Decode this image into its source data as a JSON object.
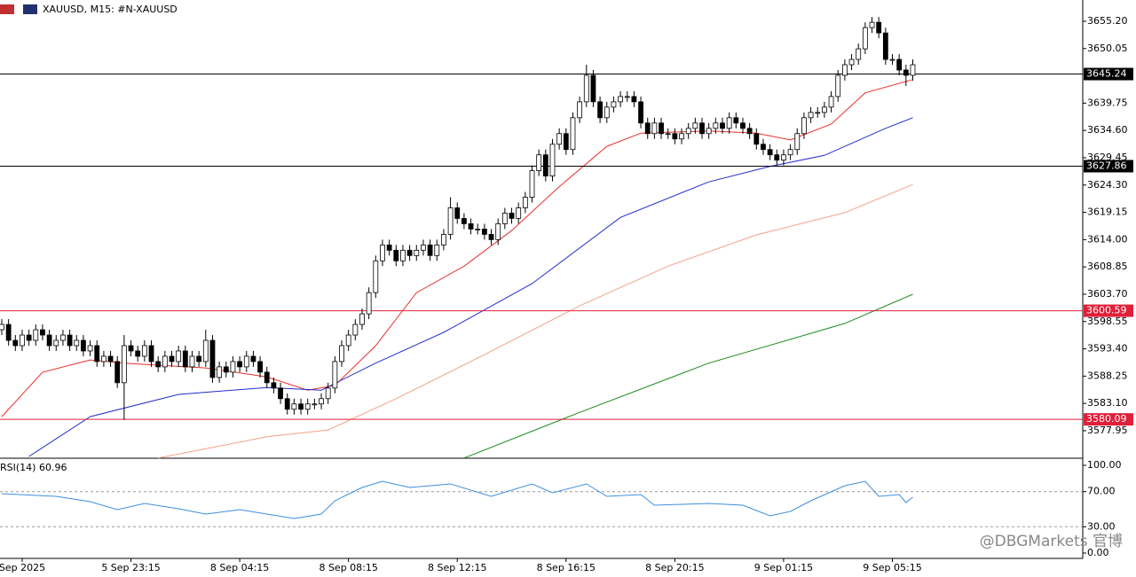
{
  "chart_data": {
    "type": "candlestick",
    "title": "XAUUSD, M15:  #N-XAUUSD",
    "watermark": "@DBGMarkets 官博",
    "bull_color": "#ffffff",
    "bear_color": "#000000",
    "open": [
      3597,
      3598,
      3595,
      3594,
      3596,
      3595,
      3597,
      3596,
      3594,
      3595,
      3596,
      3594,
      3595,
      3593,
      3594,
      3591,
      3592,
      3591,
      3587,
      3594,
      3593,
      3592,
      3594,
      3591,
      3590,
      3592,
      3591,
      3593,
      3590,
      3592,
      3591,
      3595,
      3588,
      3590,
      3589,
      3591,
      3590,
      3592,
      3591,
      3589,
      3587,
      3586,
      3584,
      3582,
      3583,
      3582,
      3583,
      3583,
      3584,
      3586,
      3591,
      3594,
      3596,
      3598,
      3600,
      3604,
      3610,
      3613,
      3612,
      3610,
      3612,
      3611,
      3612,
      3613,
      3611,
      3613,
      3615,
      3620,
      3618,
      3617,
      3616,
      3616,
      3615,
      3614,
      3617,
      3619,
      3618,
      3620,
      3622,
      3627,
      3630,
      3626,
      3632,
      3634,
      3631,
      3637,
      3640,
      3645,
      3640,
      3637,
      3639,
      3640,
      3641,
      3641,
      3640,
      3636,
      3634,
      3636,
      3634,
      3634,
      3633,
      3634,
      3635,
      3636,
      3634,
      3635,
      3636,
      3635,
      3637,
      3636,
      3635,
      3634,
      3632,
      3631,
      3630,
      3629,
      3630,
      3631,
      3634,
      3637,
      3638,
      3638,
      3639,
      3641,
      3645,
      3647,
      3648,
      3650,
      3654,
      3655,
      3653,
      3648,
      3648,
      3646,
      3645
    ],
    "high": [
      3599,
      3599,
      3596,
      3597,
      3597,
      3598,
      3598,
      3597,
      3596,
      3597,
      3597,
      3596,
      3596,
      3595,
      3595,
      3593,
      3593,
      3592,
      3596,
      3595,
      3594,
      3595,
      3595,
      3592,
      3593,
      3593,
      3594,
      3594,
      3593,
      3593,
      3597,
      3596,
      3591,
      3591,
      3592,
      3592,
      3593,
      3593,
      3592,
      3590,
      3588,
      3587,
      3585,
      3584,
      3584,
      3584,
      3584,
      3585,
      3587,
      3592,
      3595,
      3597,
      3599,
      3601,
      3605,
      3611,
      3614,
      3614,
      3613,
      3613,
      3613,
      3613,
      3614,
      3614,
      3614,
      3616,
      3622,
      3621,
      3619,
      3618,
      3617,
      3617,
      3616,
      3618,
      3620,
      3620,
      3621,
      3623,
      3628,
      3631,
      3631,
      3633,
      3635,
      3635,
      3638,
      3641,
      3647,
      3646,
      3641,
      3640,
      3641,
      3642,
      3642,
      3642,
      3641,
      3637,
      3637,
      3637,
      3635,
      3635,
      3635,
      3636,
      3637,
      3637,
      3636,
      3637,
      3637,
      3638,
      3638,
      3637,
      3636,
      3635,
      3633,
      3632,
      3631,
      3631,
      3632,
      3635,
      3638,
      3639,
      3639,
      3640,
      3642,
      3646,
      3648,
      3649,
      3651,
      3655,
      3656,
      3656,
      3654,
      3649,
      3649,
      3647,
      3648
    ],
    "low": [
      3596,
      3594,
      3593,
      3593,
      3594,
      3594,
      3595,
      3593,
      3593,
      3594,
      3593,
      3593,
      3592,
      3592,
      3590,
      3590,
      3590,
      3586,
      3580,
      3592,
      3591,
      3591,
      3590,
      3589,
      3589,
      3590,
      3590,
      3589,
      3589,
      3590,
      3590,
      3587,
      3587,
      3588,
      3588,
      3589,
      3589,
      3590,
      3588,
      3586,
      3585,
      3583,
      3581,
      3581,
      3581,
      3581,
      3582,
      3582,
      3583,
      3585,
      3590,
      3593,
      3595,
      3597,
      3599,
      3603,
      3609,
      3611,
      3609,
      3609,
      3610,
      3610,
      3611,
      3610,
      3610,
      3612,
      3614,
      3617,
      3616,
      3615,
      3615,
      3614,
      3613,
      3613,
      3616,
      3617,
      3617,
      3619,
      3621,
      3626,
      3625,
      3625,
      3631,
      3630,
      3630,
      3636,
      3639,
      3639,
      3636,
      3636,
      3638,
      3639,
      3640,
      3639,
      3635,
      3633,
      3633,
      3633,
      3633,
      3632,
      3632,
      3633,
      3634,
      3633,
      3633,
      3634,
      3634,
      3634,
      3635,
      3634,
      3633,
      3631,
      3630,
      3629,
      3628,
      3628,
      3629,
      3630,
      3633,
      3636,
      3637,
      3637,
      3638,
      3640,
      3644,
      3646,
      3647,
      3649,
      3653,
      3652,
      3647,
      3647,
      3645,
      3643,
      3644
    ],
    "close": [
      3598,
      3595,
      3594,
      3596,
      3595,
      3597,
      3596,
      3594,
      3595,
      3596,
      3594,
      3595,
      3593,
      3594,
      3591,
      3592,
      3591,
      3587,
      3594,
      3593,
      3592,
      3594,
      3591,
      3590,
      3592,
      3591,
      3593,
      3590,
      3592,
      3591,
      3595,
      3588,
      3590,
      3589,
      3591,
      3590,
      3592,
      3591,
      3589,
      3587,
      3586,
      3584,
      3582,
      3583,
      3582,
      3583,
      3583,
      3584,
      3586,
      3591,
      3594,
      3596,
      3598,
      3600,
      3604,
      3610,
      3613,
      3612,
      3610,
      3612,
      3611,
      3612,
      3613,
      3611,
      3613,
      3615,
      3620,
      3618,
      3617,
      3616,
      3616,
      3615,
      3614,
      3617,
      3619,
      3618,
      3620,
      3622,
      3627,
      3630,
      3626,
      3632,
      3634,
      3631,
      3637,
      3640,
      3645,
      3640,
      3637,
      3639,
      3640,
      3641,
      3641,
      3640,
      3636,
      3634,
      3636,
      3634,
      3634,
      3633,
      3634,
      3635,
      3636,
      3634,
      3635,
      3636,
      3635,
      3637,
      3636,
      3635,
      3634,
      3632,
      3631,
      3630,
      3629,
      3630,
      3631,
      3634,
      3637,
      3638,
      3638,
      3639,
      3641,
      3645,
      3647,
      3648,
      3650,
      3654,
      3655,
      3653,
      3648,
      3648,
      3646,
      3645,
      3647
    ],
    "xlim": [
      -0.26,
      159.0
    ],
    "xticks": [
      {
        "value": 3,
        "label": "Sep 2025"
      },
      {
        "value": 19,
        "label": "5 Sep 23:15"
      },
      {
        "value": 35,
        "label": "8 Sep 04:15"
      },
      {
        "value": 51,
        "label": "8 Sep 08:15"
      },
      {
        "value": 67,
        "label": "8 Sep 12:15"
      },
      {
        "value": 83,
        "label": "8 Sep 16:15"
      },
      {
        "value": 99,
        "label": "8 Sep 20:15"
      },
      {
        "value": 115,
        "label": "9 Sep 01:15"
      },
      {
        "value": 131,
        "label": "9 Sep 05:15"
      }
    ],
    "ylim": [
      3572.76,
      3659.21
    ],
    "yticks": [
      {
        "value": 3655.2,
        "label": "3655.20"
      },
      3650.05,
      3639.75,
      {
        "value": 3634.6,
        "label": "3634.60"
      },
      3629.45,
      {
        "value": 3624.3,
        "label": "3624.30"
      },
      3619.15,
      {
        "value": 3614,
        "label": "3614.00"
      },
      3608.85,
      {
        "value": 3603.7,
        "label": "3603.70"
      },
      3598.55,
      {
        "value": 3593.4,
        "label": "3593.40"
      },
      3588.25,
      {
        "value": 3583.1,
        "label": "3583.10"
      },
      3577.95
    ],
    "levels": [
      {
        "value": 3645.24,
        "color": "#000000"
      },
      {
        "value": 3627.86,
        "color": "#000000"
      },
      {
        "value": 3600.59,
        "color": "#e0203a"
      },
      {
        "value": 3580.09,
        "color": "#e0203a"
      }
    ],
    "lines": [
      {
        "color": "#e8302a",
        "x": [
          0,
          6,
          13,
          19,
          30,
          39,
          45,
          49,
          55,
          61,
          68,
          75,
          82,
          89,
          94,
          104,
          111,
          116,
          122,
          127,
          134
        ],
        "values": [
          3580.6,
          3589,
          3591.3,
          3590.6,
          3589.8,
          3588.1,
          3585.6,
          3586.5,
          3594,
          3604,
          3609,
          3615.7,
          3624,
          3631.6,
          3634.1,
          3634.5,
          3634.1,
          3632.8,
          3635.8,
          3641.7,
          3644.2
        ]
      },
      {
        "color": "#1f2ecc",
        "x": [
          4,
          13,
          26,
          39,
          47,
          55,
          65,
          78,
          91,
          104,
          113,
          121,
          130,
          134
        ],
        "values": [
          3573.1,
          3580.6,
          3584.8,
          3586.1,
          3585.6,
          3590.7,
          3596.5,
          3605.7,
          3618.2,
          3624.9,
          3627.8,
          3629.9,
          3635,
          3637
        ]
      },
      {
        "color": "#f4a08a",
        "x": [
          23,
          39,
          48,
          58,
          71,
          85,
          98,
          111,
          124,
          134
        ],
        "values": [
          3572.8,
          3576.8,
          3578.1,
          3584,
          3592.3,
          3601.5,
          3609,
          3614.9,
          3619.1,
          3624.4
        ]
      },
      {
        "color": "#1a8a1a",
        "x": [
          68,
          85,
          104,
          124,
          134
        ],
        "values": [
          3572.8,
          3581.4,
          3590.7,
          3598.2,
          3603.7
        ]
      }
    ],
    "rsi": {
      "label": "RSI(14) 60.96",
      "color": "#3c8fe0",
      "ylim": [
        -6.06,
        106.06
      ],
      "yticks": [
        {
          "value": 100,
          "label": "100.00"
        },
        {
          "value": 70,
          "label": "70.00"
        },
        {
          "value": 30,
          "label": "30.00"
        },
        {
          "value": 0,
          "label": "0.00"
        }
      ],
      "dotted_levels": [
        70,
        30
      ],
      "x": [
        0,
        8,
        13,
        17,
        21,
        26,
        30,
        35,
        39,
        43,
        47,
        49,
        53,
        56,
        60,
        66,
        72,
        78,
        81,
        86,
        89,
        94,
        96,
        104,
        109,
        113,
        116,
        119,
        124,
        127,
        129,
        132,
        133,
        134
      ],
      "values": [
        67.7,
        64.6,
        58.6,
        49.5,
        56.6,
        50.5,
        44.4,
        49.5,
        44.4,
        39.4,
        44.4,
        59.6,
        74.7,
        81.8,
        74.7,
        78.8,
        64.6,
        78.8,
        68.7,
        78.8,
        64.6,
        66.7,
        54.5,
        56.6,
        54.5,
        42.4,
        47.5,
        59.6,
        76.8,
        81.8,
        64.6,
        66.7,
        57.6,
        63.6
      ]
    }
  }
}
